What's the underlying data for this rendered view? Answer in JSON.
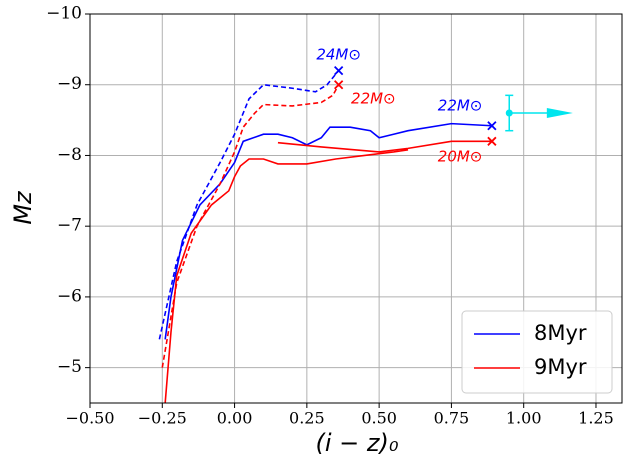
{
  "chart_data": {
    "type": "line",
    "xlabel": "(i − z)₀",
    "ylabel": "Mz",
    "xlim": [
      -0.5,
      1.34
    ],
    "ylim": [
      -4.5,
      -10
    ],
    "xticks": [
      {
        "value": -0.5,
        "label": "−0.50"
      },
      {
        "value": -0.25,
        "label": "−0.25"
      },
      {
        "value": 0,
        "label": "0.00"
      },
      {
        "value": 0.25,
        "label": "0.25"
      },
      {
        "value": 0.5,
        "label": "0.50"
      },
      {
        "value": 0.75,
        "label": "0.75"
      },
      {
        "value": 1,
        "label": "1.00"
      },
      {
        "value": 1.25,
        "label": "1.25"
      }
    ],
    "yticks": [
      {
        "value": -10,
        "label": "−10"
      },
      {
        "value": -9,
        "label": "−9"
      },
      {
        "value": -8,
        "label": "−8"
      },
      {
        "value": -7,
        "label": "−7"
      },
      {
        "value": -6,
        "label": "−6"
      },
      {
        "value": -5,
        "label": "−5"
      }
    ],
    "grid": true,
    "legend": "lower right",
    "series": [
      {
        "name": "8Myr",
        "color": "#0000ff",
        "dash": false,
        "end_marker": "x",
        "x": [
          -0.24,
          -0.22,
          -0.18,
          -0.12,
          -0.05,
          0.0,
          0.03,
          0.1,
          0.15,
          0.2,
          0.25,
          0.3,
          0.33,
          0.4,
          0.47,
          0.5,
          0.55,
          0.6,
          0.75,
          0.89
        ],
        "values": [
          -5.4,
          -6.0,
          -6.8,
          -7.3,
          -7.6,
          -7.9,
          -8.2,
          -8.3,
          -8.3,
          -8.25,
          -8.15,
          -8.25,
          -8.4,
          -8.4,
          -8.35,
          -8.25,
          -8.3,
          -8.35,
          -8.45,
          -8.42
        ]
      },
      {
        "name": "9Myr",
        "color": "#ff0000",
        "dash": false,
        "end_marker": "x",
        "x": [
          -0.24,
          -0.22,
          -0.2,
          -0.15,
          -0.08,
          -0.02,
          0.0,
          0.02,
          0.05,
          0.1,
          0.15,
          0.25,
          0.35,
          0.45,
          0.55,
          0.6,
          null,
          0.15,
          0.3,
          0.5,
          0.6,
          0.75,
          0.89
        ],
        "values": [
          -4.5,
          -5.5,
          -6.3,
          -6.9,
          -7.3,
          -7.5,
          -7.7,
          -7.85,
          -7.95,
          -7.95,
          -7.88,
          -7.88,
          -7.95,
          -8.0,
          -8.05,
          -8.08,
          null,
          -8.18,
          -8.12,
          -8.05,
          -8.1,
          -8.2,
          -8.2
        ]
      },
      {
        "color": "#0000ff",
        "dash": true,
        "end_marker": "x",
        "x": [
          -0.26,
          -0.2,
          -0.13,
          -0.05,
          0.0,
          0.05,
          0.1,
          0.2,
          0.28,
          0.32,
          0.36
        ],
        "values": [
          -5.4,
          -6.5,
          -7.3,
          -7.9,
          -8.3,
          -8.8,
          -9.0,
          -8.95,
          -8.9,
          -9.0,
          -9.2
        ]
      },
      {
        "color": "#ff0000",
        "dash": true,
        "end_marker": "x",
        "x": [
          -0.25,
          -0.2,
          -0.13,
          -0.05,
          0.0,
          0.03,
          0.07,
          0.1,
          0.2,
          0.3,
          0.34,
          0.36
        ],
        "values": [
          -5.0,
          -6.2,
          -7.0,
          -7.6,
          -8.05,
          -8.4,
          -8.6,
          -8.72,
          -8.7,
          -8.75,
          -8.85,
          -9.0
        ]
      }
    ],
    "points": [
      {
        "x": 0.95,
        "y": -8.6,
        "yerr": 0.25,
        "arrow_to": 1.17,
        "color": "#00e5ee"
      }
    ],
    "annotations": [
      {
        "text": "24M⊙",
        "x": 0.36,
        "y": -9.42,
        "color": "#0000ff"
      },
      {
        "text": "22M⊙",
        "x": 0.48,
        "y": -8.8,
        "color": "#ff0000"
      },
      {
        "text": "22M⊙",
        "x": 0.78,
        "y": -8.7,
        "color": "#0000ff"
      },
      {
        "text": "20M⊙",
        "x": 0.78,
        "y": -7.98,
        "color": "#ff0000"
      }
    ]
  }
}
